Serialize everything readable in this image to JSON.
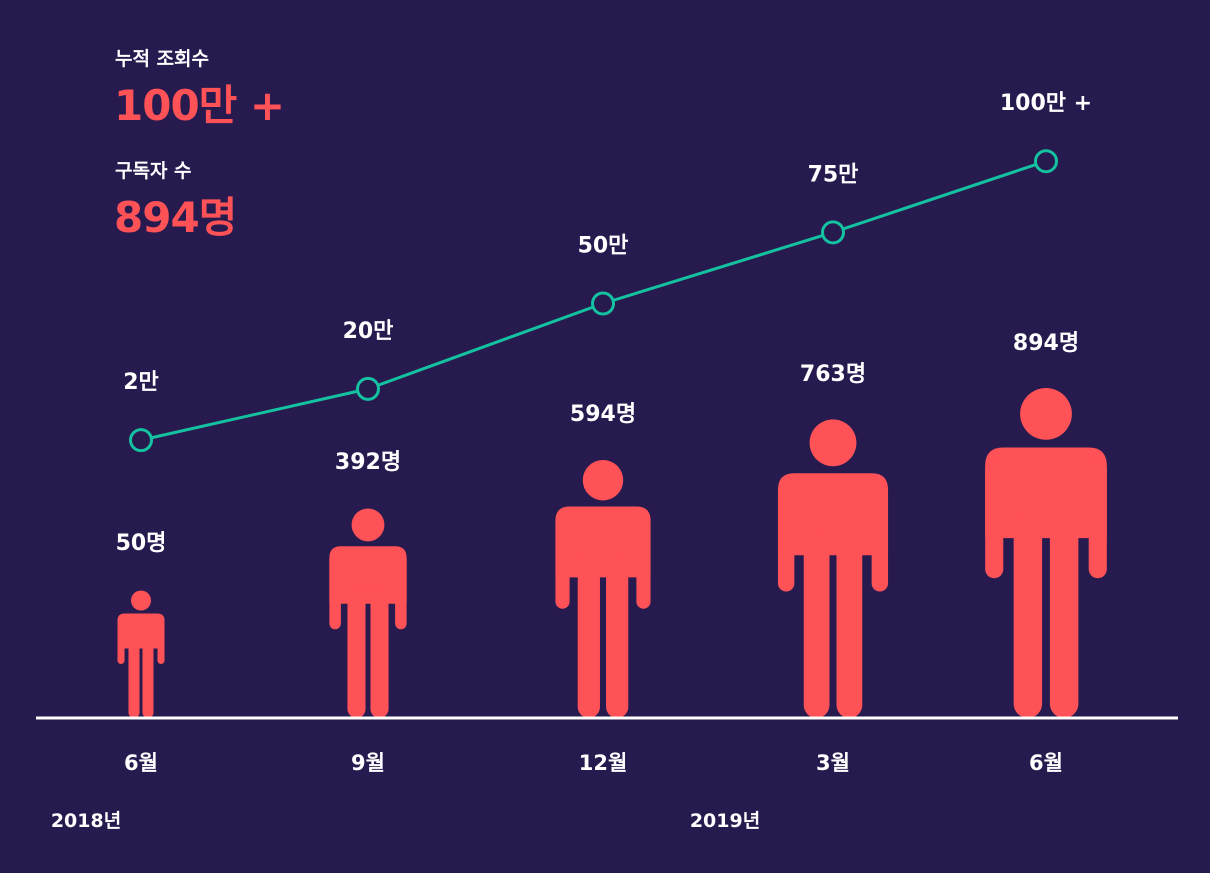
{
  "summary": {
    "views_label": "누적 조회수",
    "views_value": "100만 +",
    "subscribers_label": "구독자 수",
    "subscribers_value": "894명"
  },
  "colors": {
    "background": "#261a4f",
    "line": "#14c2a1",
    "figure": "#ff5257",
    "axis": "#ffffff",
    "text": "#ffffff"
  },
  "chart_data": {
    "type": "line+pictograph",
    "categories": [
      "6월",
      "9월",
      "12월",
      "3월",
      "6월"
    ],
    "year_labels": [
      {
        "label": "2018년",
        "category_index": 0
      },
      {
        "label": "2019년",
        "category_index": 3
      }
    ],
    "series": [
      {
        "values": [
          20000,
          200000,
          500000,
          750000,
          1000000
        ],
        "labels": [
          "2만",
          "20만",
          "50만",
          "75만",
          "100만 +"
        ],
        "chart": "line"
      },
      {
        "values": [
          50,
          392,
          594,
          763,
          894
        ],
        "labels": [
          "50명",
          "392명",
          "594명",
          "763명",
          "894명"
        ],
        "chart": "pictograph"
      }
    ]
  }
}
